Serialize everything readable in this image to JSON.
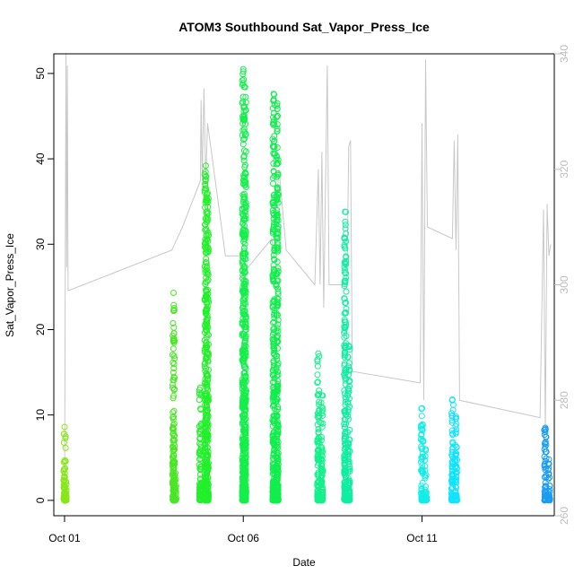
{
  "chart_data": {
    "type": "scatter",
    "title": "ATOM3 Southbound Sat_Vapor_Press_Ice",
    "xlabel": "Date",
    "ylabel": "Sat_Vapor_Press_Ice",
    "x_axis": {
      "unit": "days since Oct 01",
      "range": [
        -0.3,
        13.7
      ],
      "ticks": [
        {
          "value": 0,
          "label": "Oct 01"
        },
        {
          "value": 5,
          "label": "Oct 06"
        },
        {
          "value": 10,
          "label": "Oct 11"
        }
      ]
    },
    "y_axis_left": {
      "range": [
        -1.8,
        52.3
      ],
      "ticks": [
        0,
        10,
        20,
        30,
        40,
        50
      ]
    },
    "y_axis_right": {
      "range": [
        260,
        340
      ],
      "ticks": [
        260,
        280,
        300,
        320,
        340
      ],
      "color": "#bdbdbd"
    },
    "grid": false,
    "point_style": "open-circle",
    "series": [
      {
        "color": "#88e61a",
        "clusters": [
          {
            "x": 0.0,
            "y_max": 8.6
          },
          {
            "x": 0.03,
            "y_max": 4.6
          }
        ]
      },
      {
        "color": "#4ae626",
        "clusters": [
          {
            "x": 3.05,
            "y_max": 24.3
          },
          {
            "x": 3.1,
            "y_max": 3.2
          }
        ]
      },
      {
        "color": "#22f02a",
        "clusters": [
          {
            "x": 3.8,
            "y_max": 13.2
          },
          {
            "x": 3.95,
            "y_max": 39.2
          },
          {
            "x": 4.0,
            "y_max": 36.0
          }
        ]
      },
      {
        "color": "#14ef4a",
        "clusters": [
          {
            "x": 5.0,
            "y_max": 50.5
          },
          {
            "x": 5.05,
            "y_max": 48.4
          }
        ]
      },
      {
        "color": "#10ee4c",
        "clusters": [
          {
            "x": 5.85,
            "y_max": 47.6
          },
          {
            "x": 5.95,
            "y_max": 46.5
          }
        ]
      },
      {
        "color": "#12f08a",
        "clusters": [
          {
            "x": 7.1,
            "y_max": 17.2
          },
          {
            "x": 7.2,
            "y_max": 12.3
          }
        ]
      },
      {
        "color": "#10eea0",
        "clusters": [
          {
            "x": 7.85,
            "y_max": 33.8
          },
          {
            "x": 7.95,
            "y_max": 18.1
          }
        ]
      },
      {
        "color": "#10eee6",
        "clusters": [
          {
            "x": 10.0,
            "y_max": 10.8
          },
          {
            "x": 10.1,
            "y_max": 6.0
          }
        ]
      },
      {
        "color": "#10e4ff",
        "clusters": [
          {
            "x": 10.85,
            "y_max": 11.8
          },
          {
            "x": 10.95,
            "y_max": 9.8
          }
        ]
      },
      {
        "color": "#1a9cf0",
        "clusters": [
          {
            "x": 13.45,
            "y_max": 8.5
          },
          {
            "x": 13.55,
            "y_max": 4.8
          }
        ]
      }
    ],
    "secondary_series": {
      "color": "#c8c8c8",
      "type": "line",
      "points": [
        [
          0.0,
          262
        ],
        [
          0.02,
          305
        ],
        [
          0.04,
          340
        ],
        [
          0.06,
          303
        ],
        [
          0.08,
          338
        ],
        [
          0.1,
          299
        ],
        [
          0.12,
          299
        ],
        [
          3.0,
          306
        ],
        [
          3.3,
          310
        ],
        [
          3.8,
          318
        ],
        [
          3.82,
          332
        ],
        [
          3.85,
          318
        ],
        [
          3.9,
          334
        ],
        [
          3.95,
          318
        ],
        [
          4.0,
          328
        ],
        [
          4.5,
          305
        ],
        [
          4.9,
          305
        ],
        [
          5.0,
          302
        ],
        [
          5.8,
          308
        ],
        [
          5.85,
          305
        ],
        [
          5.9,
          312
        ],
        [
          6.0,
          320
        ],
        [
          6.2,
          306
        ],
        [
          7.0,
          300
        ],
        [
          7.1,
          320
        ],
        [
          7.15,
          300
        ],
        [
          7.2,
          323
        ],
        [
          7.25,
          296
        ],
        [
          7.35,
          338
        ],
        [
          7.4,
          300
        ],
        [
          7.9,
          300
        ],
        [
          7.95,
          324
        ],
        [
          8.0,
          325
        ],
        [
          8.05,
          285
        ],
        [
          9.95,
          283
        ],
        [
          10.0,
          328
        ],
        [
          10.05,
          280
        ],
        [
          10.1,
          339
        ],
        [
          10.15,
          310
        ],
        [
          10.85,
          308
        ],
        [
          10.9,
          325
        ],
        [
          10.95,
          306
        ],
        [
          11.0,
          326
        ],
        [
          11.05,
          280
        ],
        [
          13.3,
          277
        ],
        [
          13.4,
          313
        ],
        [
          13.45,
          275
        ],
        [
          13.5,
          314
        ],
        [
          13.55,
          305
        ],
        [
          13.6,
          307
        ]
      ]
    }
  }
}
